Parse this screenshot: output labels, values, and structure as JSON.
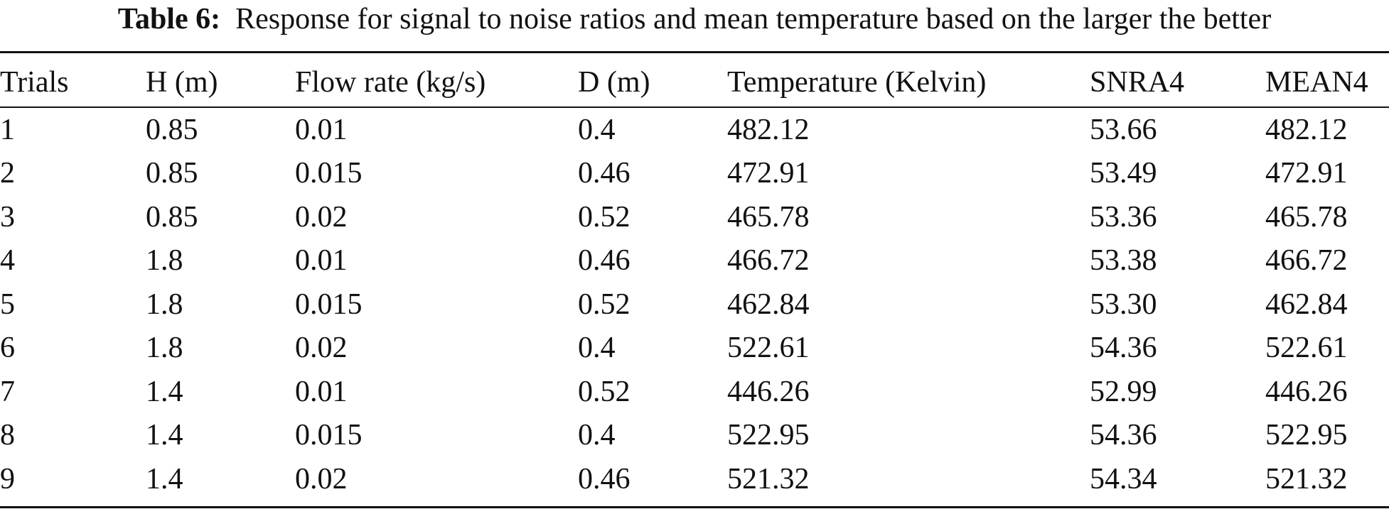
{
  "caption": {
    "label": "Table 6:",
    "text": "Response for signal to noise ratios and mean temperature based on the larger the better"
  },
  "table": {
    "headers": [
      "Trials",
      "H (m)",
      "Flow rate (kg/s)",
      "D (m)",
      "Temperature (Kelvin)",
      "SNRA4",
      "MEAN4"
    ],
    "rows": [
      [
        "1",
        "0.85",
        "0.01",
        "0.4",
        "482.12",
        "53.66",
        "482.12"
      ],
      [
        "2",
        "0.85",
        "0.015",
        "0.46",
        "472.91",
        "53.49",
        "472.91"
      ],
      [
        "3",
        "0.85",
        "0.02",
        "0.52",
        "465.78",
        "53.36",
        "465.78"
      ],
      [
        "4",
        "1.8",
        "0.01",
        "0.46",
        "466.72",
        "53.38",
        "466.72"
      ],
      [
        "5",
        "1.8",
        "0.015",
        "0.52",
        "462.84",
        "53.30",
        "462.84"
      ],
      [
        "6",
        "1.8",
        "0.02",
        "0.4",
        "522.61",
        "54.36",
        "522.61"
      ],
      [
        "7",
        "1.4",
        "0.01",
        "0.52",
        "446.26",
        "52.99",
        "446.26"
      ],
      [
        "8",
        "1.4",
        "0.015",
        "0.4",
        "522.95",
        "54.36",
        "522.95"
      ],
      [
        "9",
        "1.4",
        "0.02",
        "0.46",
        "521.32",
        "54.34",
        "521.32"
      ]
    ]
  }
}
